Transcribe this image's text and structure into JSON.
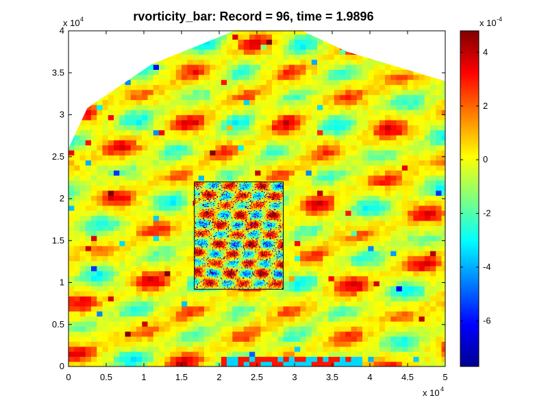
{
  "chart_data": {
    "type": "heatmap",
    "title": "rvorticity_bar:    Record = 96,    time = 1.9896",
    "xlabel": "",
    "ylabel": "",
    "x_ticks": [
      "0",
      "0.5",
      "1",
      "1.5",
      "2",
      "2.5",
      "3",
      "3.5",
      "4",
      "4.5",
      "5"
    ],
    "y_ticks": [
      "0",
      "0.5",
      "1",
      "1.5",
      "2",
      "2.5",
      "3",
      "3.5",
      "4"
    ],
    "xlim": [
      0,
      50000
    ],
    "ylim": [
      0,
      40000
    ],
    "x_exponent_label": "x 10",
    "x_exponent": "4",
    "y_exponent_label": "x 10",
    "y_exponent": "4",
    "colorbar": {
      "colormap": "jet",
      "range": [
        -7.7,
        4.8
      ],
      "tick_labels": [
        "4",
        "2",
        "0",
        "-2",
        "-4",
        "-6"
      ],
      "tick_values": [
        4,
        2,
        0,
        -2,
        -4,
        -6
      ],
      "exponent_label": "x 10",
      "exponent": "-4"
    },
    "inset_box": {
      "x_range": [
        16700,
        28500
      ],
      "y_range": [
        9200,
        22000
      ]
    },
    "domain_outline": [
      [
        0,
        0
      ],
      [
        0,
        26000
      ],
      [
        2500,
        30800
      ],
      [
        11000,
        36000
      ],
      [
        22000,
        40000
      ],
      [
        31000,
        40000
      ],
      [
        37000,
        37500
      ],
      [
        50000,
        34000
      ],
      [
        50000,
        0
      ]
    ]
  }
}
